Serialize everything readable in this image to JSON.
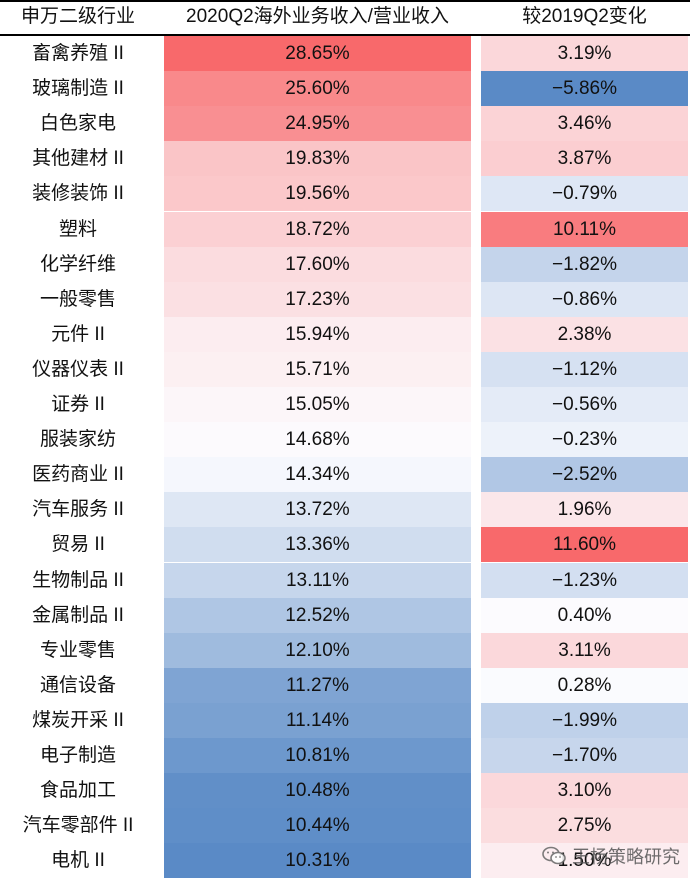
{
  "chart_data": {
    "type": "table",
    "columns": [
      "申万二级行业",
      "2020Q2海外业务收入/营业收入",
      "较2019Q2变化"
    ],
    "rows": [
      {
        "industry": "畜禽养殖 II",
        "ratio": "28.65%",
        "change": "3.19%"
      },
      {
        "industry": "玻璃制造 II",
        "ratio": "25.60%",
        "change": "−5.86%"
      },
      {
        "industry": "白色家电",
        "ratio": "24.95%",
        "change": "3.46%"
      },
      {
        "industry": "其他建材 II",
        "ratio": "19.83%",
        "change": "3.87%"
      },
      {
        "industry": "装修装饰 II",
        "ratio": "19.56%",
        "change": "−0.79%"
      },
      {
        "industry": "塑料",
        "ratio": "18.72%",
        "change": "10.11%"
      },
      {
        "industry": "化学纤维",
        "ratio": "17.60%",
        "change": "−1.82%"
      },
      {
        "industry": "一般零售",
        "ratio": "17.23%",
        "change": "−0.86%"
      },
      {
        "industry": "元件 II",
        "ratio": "15.94%",
        "change": "2.38%"
      },
      {
        "industry": "仪器仪表 II",
        "ratio": "15.71%",
        "change": "−1.12%"
      },
      {
        "industry": "证券 II",
        "ratio": "15.05%",
        "change": "−0.56%"
      },
      {
        "industry": "服装家纺",
        "ratio": "14.68%",
        "change": "−0.23%"
      },
      {
        "industry": "医药商业 II",
        "ratio": "14.34%",
        "change": "−2.52%"
      },
      {
        "industry": "汽车服务 II",
        "ratio": "13.72%",
        "change": "1.96%"
      },
      {
        "industry": "贸易 II",
        "ratio": "13.36%",
        "change": "11.60%"
      },
      {
        "industry": "生物制品 II",
        "ratio": "13.11%",
        "change": "−1.23%"
      },
      {
        "industry": "金属制品 II",
        "ratio": "12.52%",
        "change": "0.40%"
      },
      {
        "industry": "专业零售",
        "ratio": "12.10%",
        "change": "3.11%"
      },
      {
        "industry": "通信设备",
        "ratio": "11.27%",
        "change": "0.28%"
      },
      {
        "industry": "煤炭开采 II",
        "ratio": "11.14%",
        "change": "−1.99%"
      },
      {
        "industry": "电子制造",
        "ratio": "10.81%",
        "change": "−1.70%"
      },
      {
        "industry": "食品加工",
        "ratio": "10.48%",
        "change": "3.10%"
      },
      {
        "industry": "汽车零部件 II",
        "ratio": "10.44%",
        "change": "2.75%"
      },
      {
        "industry": "电机 II",
        "ratio": "10.31%",
        "change": "1.50%"
      }
    ],
    "colors": {
      "high": "#f8696b",
      "mid": "#fcfcff",
      "low": "#5a8ac6"
    }
  },
  "watermark": "王杨策略研究"
}
